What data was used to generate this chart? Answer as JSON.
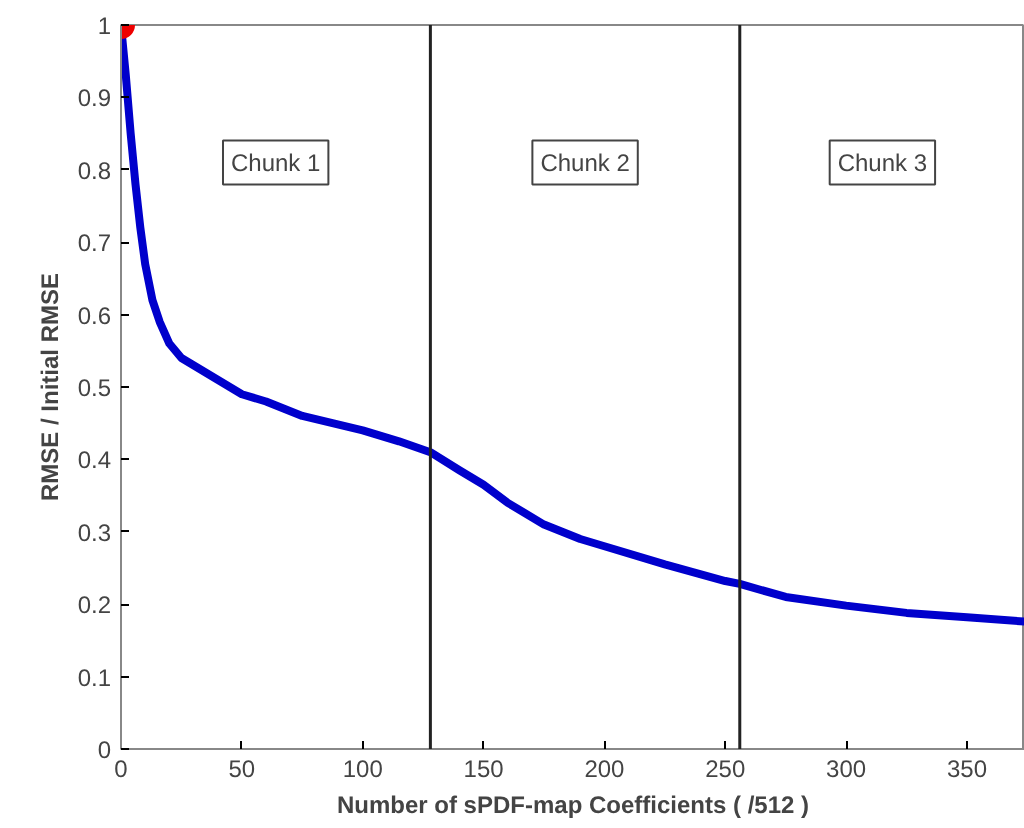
{
  "chart_data": {
    "type": "line",
    "xlabel": "Number of sPDF-map Coefficients ( /512 )",
    "ylabel": "RMSE / Initial RMSE",
    "xlim": [
      0,
      374
    ],
    "ylim": [
      0,
      1
    ],
    "xticks": [
      0,
      50,
      100,
      150,
      200,
      250,
      300,
      350
    ],
    "yticks": [
      0,
      0.1,
      0.2,
      0.3,
      0.4,
      0.5,
      0.6,
      0.7,
      0.8,
      0.9,
      1
    ],
    "grid": false,
    "series": [
      {
        "color": "#0000cc",
        "x": [
          0,
          2,
          4,
          6,
          8,
          10,
          13,
          16,
          20,
          25,
          30,
          40,
          50,
          60,
          75,
          100,
          115,
          128,
          140,
          150,
          160,
          175,
          190,
          200,
          225,
          250,
          256,
          275,
          300,
          325,
          350,
          374
        ],
        "values": [
          1.0,
          0.93,
          0.85,
          0.78,
          0.72,
          0.67,
          0.62,
          0.59,
          0.56,
          0.54,
          0.53,
          0.51,
          0.49,
          0.48,
          0.46,
          0.44,
          0.425,
          0.41,
          0.385,
          0.365,
          0.34,
          0.31,
          0.29,
          0.28,
          0.255,
          0.232,
          0.228,
          0.21,
          0.198,
          0.188,
          0.182,
          0.176
        ]
      },
      {
        "type": "scatter",
        "marker": "circle",
        "color": "#ee0000",
        "x": [
          0
        ],
        "values": [
          1.0
        ]
      }
    ],
    "ref_lines": [
      {
        "axis": "x",
        "value": 128,
        "color": "#222222"
      },
      {
        "axis": "x",
        "value": 256,
        "color": "#222222"
      }
    ],
    "annotations": [
      "Chunk 1",
      "Chunk 2",
      "Chunk 3"
    ]
  }
}
